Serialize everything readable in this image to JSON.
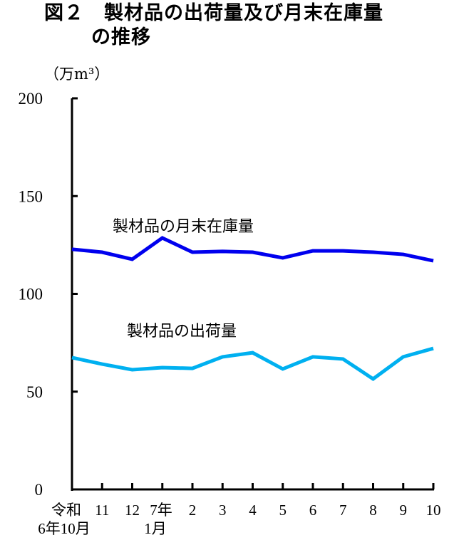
{
  "title": {
    "line1": "図２　製材品の出荷量及び月末在庫量",
    "line2": "の推移"
  },
  "chart_data": {
    "type": "line",
    "title": "図２　製材品の出荷量及び月末在庫量の推移",
    "ylabel": "（万m³）",
    "ylim": [
      0,
      200
    ],
    "yticks": [
      "0",
      "50",
      "100",
      "150",
      "200"
    ],
    "grid": false,
    "categories": [
      [
        "令和",
        "6年10月"
      ],
      [
        "11"
      ],
      [
        "12"
      ],
      [
        "7年",
        "1月"
      ],
      [
        "2"
      ],
      [
        "3"
      ],
      [
        "4"
      ],
      [
        "5"
      ],
      [
        "6"
      ],
      [
        "7"
      ],
      [
        "8"
      ],
      [
        "9"
      ],
      [
        "10"
      ]
    ],
    "series": [
      {
        "name": "製材品の月末在庫量",
        "color": "#0000ee",
        "values": [
          122.8,
          121.3,
          117.7,
          128.6,
          121.3,
          121.7,
          121.3,
          118.4,
          122.0,
          122.0,
          121.3,
          120.2,
          116.9
        ]
      },
      {
        "name": "製材品の出荷量",
        "color": "#00b0f0",
        "values": [
          67.4,
          64.1,
          61.2,
          62.3,
          61.9,
          67.8,
          69.9,
          61.6,
          67.8,
          66.7,
          56.5,
          67.8,
          72.1
        ]
      }
    ]
  }
}
